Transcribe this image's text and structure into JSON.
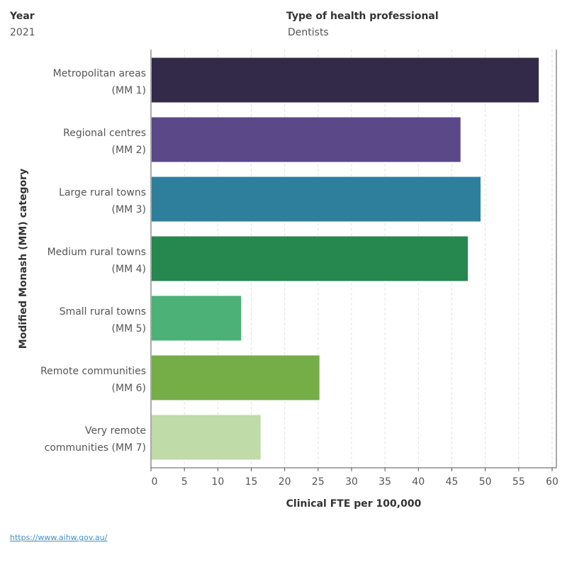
{
  "filters": {
    "year_label": "Year",
    "year_value": "2021",
    "type_label": "Type of health professional",
    "type_value": "Dentists"
  },
  "chart_data": {
    "type": "bar",
    "orientation": "horizontal",
    "categories": [
      "Metropolitan areas (MM 1)",
      "Regional centres (MM 2)",
      "Large rural towns (MM 3)",
      "Medium rural towns (MM 4)",
      "Small rural towns (MM 5)",
      "Remote communities (MM 6)",
      "Very remote communities (MM 7)"
    ],
    "category_lines": [
      [
        "Metropolitan areas",
        "(MM 1)"
      ],
      [
        "Regional centres",
        "(MM 2)"
      ],
      [
        "Large rural towns",
        "(MM 3)"
      ],
      [
        "Medium rural towns",
        "(MM 4)"
      ],
      [
        "Small rural towns",
        "(MM 5)"
      ],
      [
        "Remote communities",
        "(MM 6)"
      ],
      [
        "Very remote",
        "communities (MM 7)"
      ]
    ],
    "values": [
      58.0,
      46.3,
      49.3,
      47.4,
      13.5,
      25.2,
      16.4
    ],
    "colors": [
      "#322a48",
      "#5a4888",
      "#2e7f9c",
      "#26874f",
      "#4bb176",
      "#75ad47",
      "#bedba8"
    ],
    "xlabel": "Clinical FTE per 100,000",
    "ylabel": "Modified Monash (MM) category",
    "xlim": [
      0,
      61
    ],
    "xticks": [
      "0",
      "5",
      "10",
      "15",
      "20",
      "25",
      "30",
      "35",
      "40",
      "45",
      "50",
      "55",
      "60"
    ],
    "grid": true
  },
  "footer": {
    "link": "https://www.aihw.gov.au/"
  }
}
